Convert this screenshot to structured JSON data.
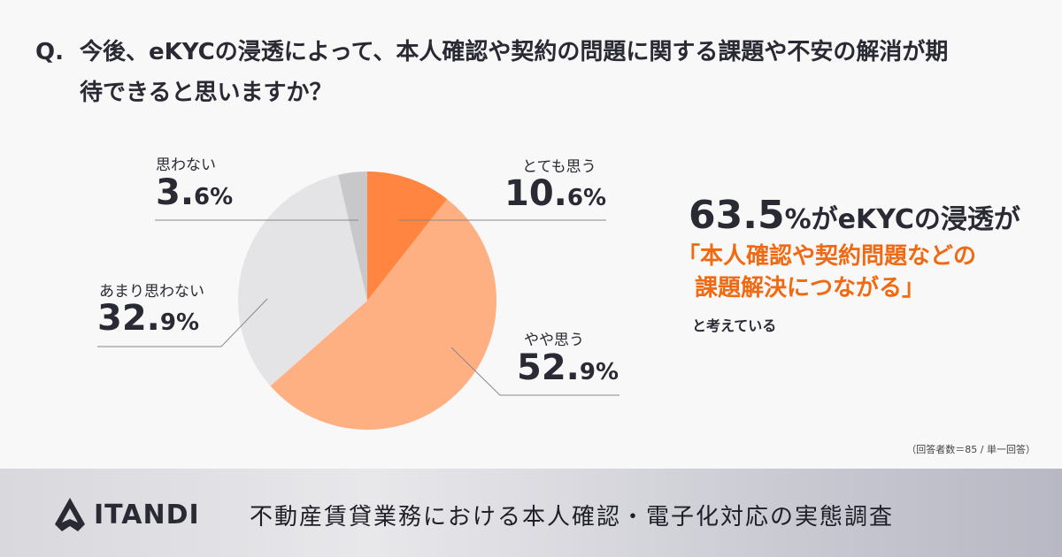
{
  "question": {
    "label": "Q.",
    "text": "今後、eKYCの浸透によって、本人確認や契約の問題に関する課題や不安の解消が期待できると思いますか？"
  },
  "chart_data": {
    "type": "pie",
    "start": "top",
    "direction": "clockwise",
    "slices": [
      {
        "label": "とても思う",
        "value": 10.6,
        "display": "10.",
        "decimal": "6%",
        "color": "#ff8540"
      },
      {
        "label": "やや思う",
        "value": 52.9,
        "display": "52.",
        "decimal": "9%",
        "color": "#ffb083"
      },
      {
        "label": "あまり思わない",
        "value": 32.9,
        "display": "32.",
        "decimal": "9%",
        "color": "#e4e4e6"
      },
      {
        "label": "思わない",
        "value": 3.6,
        "display": "3.",
        "decimal": "6%",
        "color": "#c8c8ca"
      }
    ]
  },
  "summary": {
    "big": "63.5",
    "pct": "%",
    "rest": "がeKYCの浸透が",
    "highlight1": "「本人確認や契約問題などの",
    "highlight2": "課題解決につながる」",
    "tail": "と考えている"
  },
  "note": "（回答者数＝85 / 単一回答）",
  "footer": {
    "brand": "ITANDI",
    "title": "不動産賃貸業務における本人確認・電子化対応の実態調査"
  }
}
